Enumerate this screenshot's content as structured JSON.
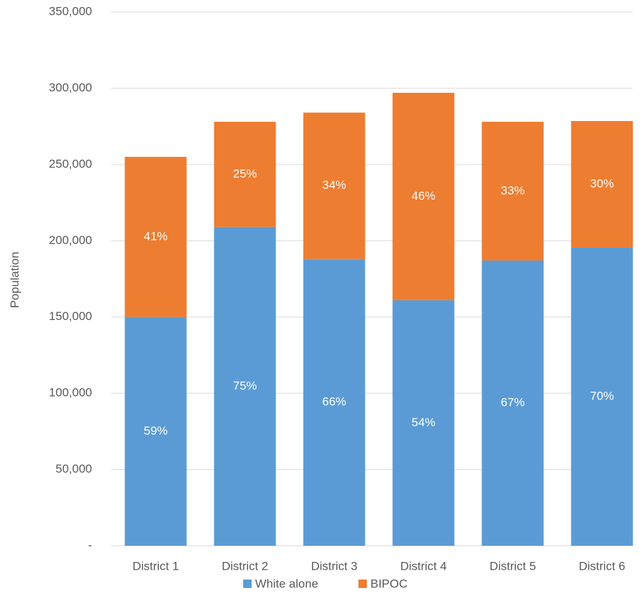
{
  "chart_data": {
    "type": "stacked_bar",
    "y_label": "Population",
    "categories": [
      "District 1",
      "District 2",
      "District 3",
      "District 4",
      "District 5",
      "District 6"
    ],
    "series": [
      {
        "name": "White alone",
        "color": "#5b9bd5",
        "values": [
          150000,
          209000,
          188000,
          161000,
          187000,
          195500
        ],
        "value_labels": [
          "59%",
          "75%",
          "66%",
          "54%",
          "67%",
          "70%"
        ]
      },
      {
        "name": "BIPOC",
        "color": "#ed7d31",
        "values": [
          105000,
          69000,
          96000,
          136000,
          91000,
          83000
        ],
        "value_labels": [
          "41%",
          "25%",
          "34%",
          "46%",
          "33%",
          "30%"
        ]
      }
    ],
    "ylim": [
      0,
      350000
    ],
    "yticks": [
      {
        "value": 0,
        "label": "-"
      },
      {
        "value": 50000,
        "label": "50,000"
      },
      {
        "value": 100000,
        "label": "100,000"
      },
      {
        "value": 150000,
        "label": "150,000"
      },
      {
        "value": 200000,
        "label": "200,000"
      },
      {
        "value": 250000,
        "label": "250,000"
      },
      {
        "value": 300000,
        "label": "300,000"
      },
      {
        "value": 350000,
        "label": "350,000"
      }
    ],
    "grid": true,
    "legend": "bottom"
  }
}
